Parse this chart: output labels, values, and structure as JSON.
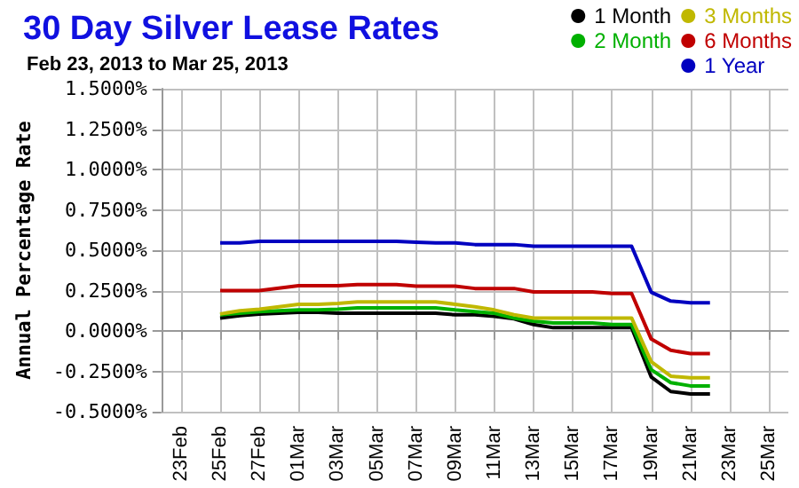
{
  "chart_data": {
    "type": "line",
    "title": "30 Day Silver Lease Rates",
    "subtitle": "Feb 23, 2013 to Mar 25, 2013",
    "ylabel": "Annual Percentage Rate",
    "x": [
      "2013-02-25",
      "2013-02-26",
      "2013-02-27",
      "2013-02-28",
      "2013-03-01",
      "2013-03-02",
      "2013-03-03",
      "2013-03-04",
      "2013-03-05",
      "2013-03-06",
      "2013-03-07",
      "2013-03-08",
      "2013-03-09",
      "2013-03-10",
      "2013-03-11",
      "2013-03-12",
      "2013-03-13",
      "2013-03-14",
      "2013-03-15",
      "2013-03-16",
      "2013-03-17",
      "2013-03-18",
      "2013-03-19",
      "2013-03-20",
      "2013-03-21",
      "2013-03-22"
    ],
    "series": [
      {
        "name": "1 Month",
        "color": "#000000",
        "values": [
          0.08,
          0.095,
          0.105,
          0.11,
          0.115,
          0.115,
          0.11,
          0.11,
          0.11,
          0.11,
          0.11,
          0.11,
          0.1,
          0.1,
          0.09,
          0.075,
          0.04,
          0.02,
          0.02,
          0.02,
          0.02,
          0.02,
          -0.285,
          -0.375,
          -0.39,
          -0.39
        ]
      },
      {
        "name": "2 Month",
        "color": "#00b000",
        "values": [
          0.1,
          0.11,
          0.12,
          0.125,
          0.13,
          0.13,
          0.135,
          0.143,
          0.143,
          0.143,
          0.143,
          0.143,
          0.13,
          0.12,
          0.11,
          0.08,
          0.06,
          0.05,
          0.05,
          0.05,
          0.04,
          0.04,
          -0.24,
          -0.32,
          -0.34,
          -0.34
        ]
      },
      {
        "name": "3 Months",
        "color": "#c0b800",
        "values": [
          0.105,
          0.125,
          0.135,
          0.15,
          0.165,
          0.165,
          0.17,
          0.18,
          0.18,
          0.18,
          0.18,
          0.18,
          0.165,
          0.15,
          0.13,
          0.1,
          0.08,
          0.08,
          0.08,
          0.08,
          0.08,
          0.08,
          -0.19,
          -0.28,
          -0.29,
          -0.29
        ]
      },
      {
        "name": "6 Months",
        "color": "#c00000",
        "values": [
          0.25,
          0.25,
          0.25,
          0.265,
          0.28,
          0.28,
          0.28,
          0.287,
          0.287,
          0.287,
          0.278,
          0.278,
          0.278,
          0.263,
          0.263,
          0.263,
          0.242,
          0.242,
          0.242,
          0.242,
          0.232,
          0.232,
          -0.05,
          -0.12,
          -0.14,
          -0.14
        ]
      },
      {
        "name": "1 Year",
        "color": "#0000c0",
        "values": [
          0.545,
          0.545,
          0.555,
          0.555,
          0.555,
          0.555,
          0.555,
          0.555,
          0.555,
          0.555,
          0.55,
          0.545,
          0.545,
          0.535,
          0.535,
          0.535,
          0.525,
          0.525,
          0.525,
          0.525,
          0.525,
          0.525,
          0.24,
          0.185,
          0.175,
          0.175
        ]
      }
    ],
    "xlim": [
      "2013-02-22",
      "2013-03-26"
    ],
    "xticks": [
      {
        "value": "2013-02-23",
        "label": "23Feb"
      },
      {
        "value": "2013-02-25",
        "label": "25Feb"
      },
      {
        "value": "2013-02-27",
        "label": "27Feb"
      },
      {
        "value": "2013-03-01",
        "label": "01Mar"
      },
      {
        "value": "2013-03-03",
        "label": "03Mar"
      },
      {
        "value": "2013-03-05",
        "label": "05Mar"
      },
      {
        "value": "2013-03-07",
        "label": "07Mar"
      },
      {
        "value": "2013-03-09",
        "label": "09Mar"
      },
      {
        "value": "2013-03-11",
        "label": "11Mar"
      },
      {
        "value": "2013-03-13",
        "label": "13Mar"
      },
      {
        "value": "2013-03-15",
        "label": "15Mar"
      },
      {
        "value": "2013-03-17",
        "label": "17Mar"
      },
      {
        "value": "2013-03-19",
        "label": "19Mar"
      },
      {
        "value": "2013-03-21",
        "label": "21Mar"
      },
      {
        "value": "2013-03-23",
        "label": "23Mar"
      },
      {
        "value": "2013-03-25",
        "label": "25Mar"
      }
    ],
    "ylim": [
      -0.5,
      1.5
    ],
    "yticks": [
      {
        "value": -0.5,
        "label": "-0.5000%"
      },
      {
        "value": -0.25,
        "label": "-0.2500%"
      },
      {
        "value": 0,
        "label": "0.0000%"
      },
      {
        "value": 0.25,
        "label": "0.2500%"
      },
      {
        "value": 0.5,
        "label": "0.5000%"
      },
      {
        "value": 0.75,
        "label": "0.7500%"
      },
      {
        "value": 1,
        "label": "1.0000%"
      },
      {
        "value": 1.25,
        "label": "1.2500%"
      },
      {
        "value": 1.5,
        "label": "1.5000%"
      }
    ],
    "grid": true,
    "legend": "top right",
    "marker": "none",
    "line_style": "solid"
  }
}
